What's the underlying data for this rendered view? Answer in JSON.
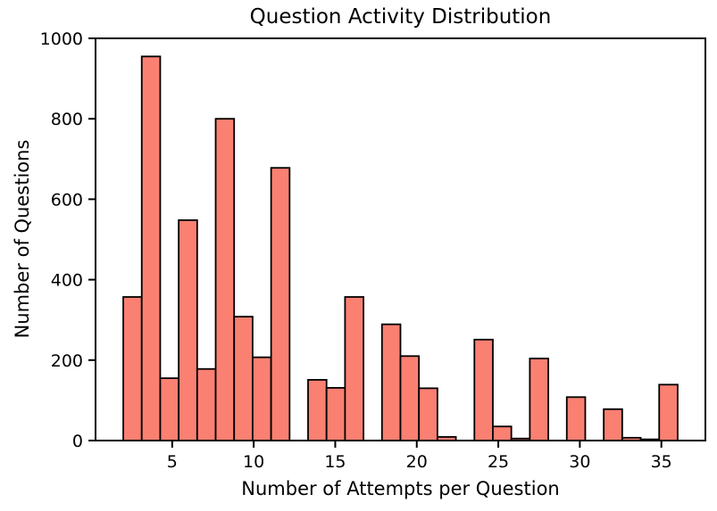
{
  "chart_data": {
    "type": "bar",
    "subtype": "histogram",
    "title": "Question Activity Distribution",
    "xlabel": "Number of Attempts per Question",
    "ylabel": "Number of Questions",
    "bins": {
      "start": 2,
      "width": 1.1333,
      "count": 30
    },
    "values": [
      357,
      955,
      155,
      548,
      178,
      800,
      308,
      207,
      678,
      0,
      151,
      131,
      357,
      0,
      289,
      210,
      130,
      9,
      0,
      251,
      35,
      5,
      204,
      0,
      108,
      0,
      78,
      7,
      3,
      139
    ],
    "x_ticks": [
      5,
      10,
      15,
      20,
      25,
      30,
      35
    ],
    "y_ticks": [
      0,
      200,
      400,
      600,
      800,
      1000
    ],
    "xlim": [
      0.3,
      37.7
    ],
    "ylim": [
      0,
      1000
    ],
    "grid": false,
    "legend": null,
    "colors": {
      "bar_fill": "#FA8072",
      "bar_edge": "#000000",
      "spine": "#000000",
      "background": "#ffffff"
    }
  }
}
